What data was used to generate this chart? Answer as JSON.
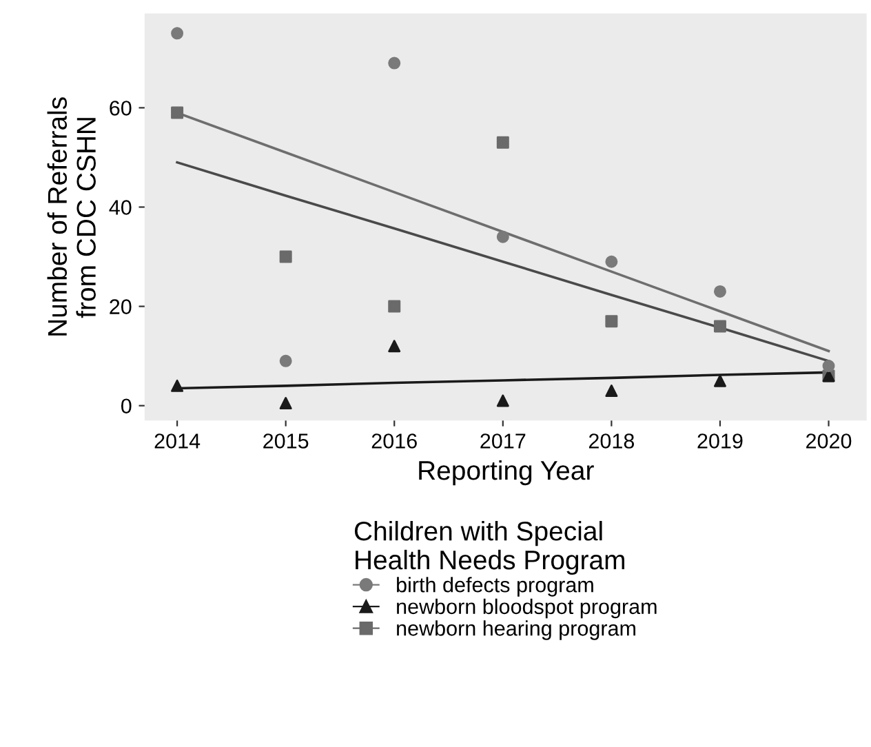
{
  "chart_data": {
    "type": "scatter",
    "xlabel": "Reporting Year",
    "ylabel": "Number of Referrals\nfrom CDC CSHN",
    "legend_title": "Children with Special\nHealth Needs Program",
    "x": [
      2014,
      2015,
      2016,
      2017,
      2018,
      2019,
      2020
    ],
    "series": [
      {
        "name": "birth defects program",
        "color": "#7a7a7a",
        "marker": "circle",
        "values": [
          75,
          9,
          69,
          34,
          29,
          23,
          8
        ]
      },
      {
        "name": "newborn bloodspot program",
        "color": "#1a1a1a",
        "marker": "triangle",
        "values": [
          4,
          0.5,
          12,
          1,
          3,
          5,
          6
        ]
      },
      {
        "name": "newborn hearing program",
        "color": "#6a6a6a",
        "marker": "square",
        "values": [
          59,
          30,
          20,
          53,
          17,
          16,
          6
        ]
      },
      {
        "type": "line",
        "color": "#6e6e6e",
        "values": [
          59,
          51,
          43,
          35,
          27,
          19,
          11
        ],
        "marker": "none"
      },
      {
        "type": "line",
        "color": "#4a4a4a",
        "values": [
          49,
          42.3,
          35.7,
          29,
          22.3,
          15.7,
          9
        ],
        "marker": "none"
      },
      {
        "type": "line",
        "color": "#1a1a1a",
        "values": [
          3.5,
          4,
          4.6,
          5.1,
          5.6,
          6.2,
          6.7
        ],
        "marker": "none"
      }
    ],
    "xlim": [
      2013.7,
      2020.35
    ],
    "ylim": [
      -3,
      79
    ],
    "xticks": [
      2014,
      2015,
      2016,
      2017,
      2018,
      2019,
      2020
    ],
    "yticks": [
      0,
      20,
      40,
      60
    ],
    "grid": false,
    "legend": "bottom"
  }
}
